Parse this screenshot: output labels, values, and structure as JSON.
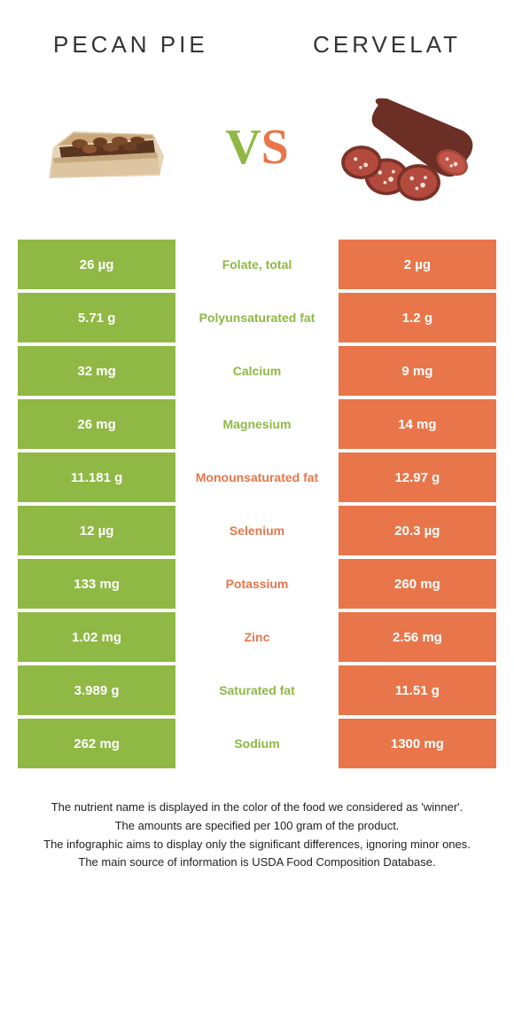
{
  "food_left": {
    "title": "Pecan pie",
    "color": "#8fb844"
  },
  "food_right": {
    "title": "Cervelat",
    "color": "#e8764a"
  },
  "vs": {
    "v": "V",
    "s": "S"
  },
  "rows": [
    {
      "left": "26 µg",
      "label": "Folate, total",
      "right": "2 µg",
      "winner": "left"
    },
    {
      "left": "5.71 g",
      "label": "Polyunsaturated fat",
      "right": "1.2 g",
      "winner": "left"
    },
    {
      "left": "32 mg",
      "label": "Calcium",
      "right": "9 mg",
      "winner": "left"
    },
    {
      "left": "26 mg",
      "label": "Magnesium",
      "right": "14 mg",
      "winner": "left"
    },
    {
      "left": "11.181 g",
      "label": "Monounsaturated fat",
      "right": "12.97 g",
      "winner": "right"
    },
    {
      "left": "12 µg",
      "label": "Selenium",
      "right": "20.3 µg",
      "winner": "right"
    },
    {
      "left": "133 mg",
      "label": "Potassium",
      "right": "260 mg",
      "winner": "right"
    },
    {
      "left": "1.02 mg",
      "label": "Zinc",
      "right": "2.56 mg",
      "winner": "right"
    },
    {
      "left": "3.989 g",
      "label": "Saturated fat",
      "right": "11.51 g",
      "winner": "left"
    },
    {
      "left": "262 mg",
      "label": "Sodium",
      "right": "1300 mg",
      "winner": "left"
    }
  ],
  "footer": {
    "line1": "The nutrient name is displayed in the color of the food we considered as 'winner'.",
    "line2": "The amounts are specified per 100 gram of the product.",
    "line3": "The infographic aims to display only the significant differences, ignoring minor ones.",
    "line4": "The main source of information is USDA Food Composition Database."
  }
}
